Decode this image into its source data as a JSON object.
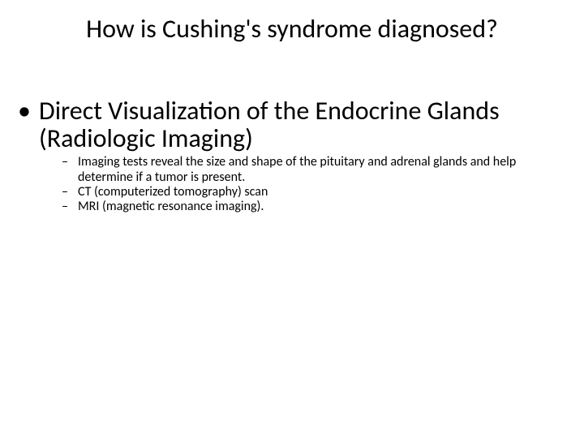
{
  "slide": {
    "title": "How is Cushing's syndrome diagnosed?",
    "title_fontsize": 32,
    "background_color": "#ffffff",
    "text_color": "#000000",
    "bullets": {
      "level1": {
        "marker": "•",
        "text": "Direct Visualization of the Endocrine Glands (Radiologic Imaging)",
        "fontsize": 32
      },
      "level2": [
        {
          "marker": "–",
          "text": "Imaging tests reveal the size and shape of the pituitary and adrenal glands and help determine if a tumor is present."
        },
        {
          "marker": "–",
          "text": "CT (computerized tomography) scan"
        },
        {
          "marker": "–",
          "text": "MRI (magnetic resonance imaging)."
        }
      ],
      "level2_fontsize": 16
    }
  }
}
